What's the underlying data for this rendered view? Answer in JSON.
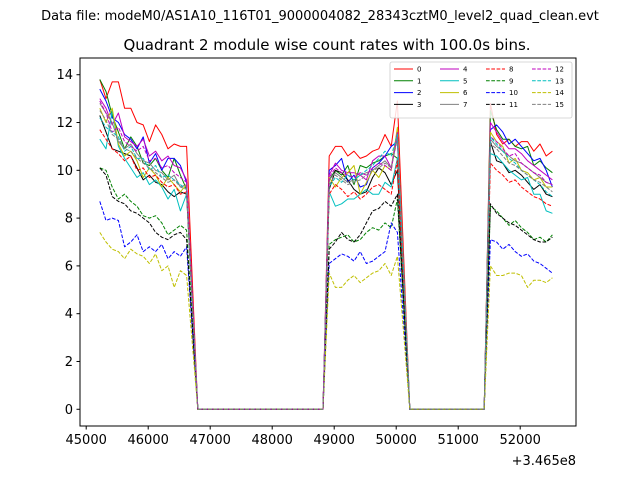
{
  "figure": {
    "suptitle": "Data file: modeM0/AS1A10_116T01_9000004082_28343cztM0_level2_quad_clean.evt",
    "title": "Quadrant 2 module wise count rates with 100.0s bins.",
    "x_offset_label": "+3.465e8"
  },
  "chart_data": {
    "type": "line",
    "title": "Quadrant 2 module wise count rates with 100.0s bins.",
    "xlabel": "",
    "ylabel": "",
    "x_offset": 346500000,
    "xlim": [
      44900,
      52900
    ],
    "ylim": [
      -0.7,
      14.7
    ],
    "xticks": [
      45000,
      46000,
      47000,
      48000,
      49000,
      50000,
      51000,
      52000
    ],
    "xtick_labels": [
      "45000",
      "46000",
      "47000",
      "48000",
      "49000",
      "50000",
      "51000",
      "52000"
    ],
    "yticks": [
      0,
      2,
      4,
      6,
      8,
      10,
      12,
      14
    ],
    "ytick_labels": [
      "0",
      "2",
      "4",
      "6",
      "8",
      "10",
      "12",
      "14"
    ],
    "legend_location": "top-right",
    "legend_columns": 4,
    "segments": [
      {
        "start": 45220,
        "step": 100,
        "n": 15
      },
      {
        "start": 48920,
        "step": 100,
        "n": 12
      },
      {
        "start": 51520,
        "step": 100,
        "n": 11
      }
    ],
    "zero_points_x": [
      46800,
      48820,
      50220,
      51420
    ],
    "series": [
      {
        "name": "0",
        "color": "#ff0000",
        "dash": "solid",
        "values": [
          13.8,
          13.0,
          13.7,
          13.7,
          12.6,
          12.6,
          12.0,
          11.9,
          11.2,
          11.9,
          11.5,
          10.9,
          11.1,
          11.0,
          11.0,
          10.6,
          11.0,
          11.0,
          10.6,
          10.8,
          10.5,
          10.6,
          10.8,
          10.9,
          11.5,
          11.0,
          12.9,
          12.8,
          11.5,
          11.1,
          11.3,
          11.0,
          11.2,
          11.2,
          10.8,
          11.1,
          10.6,
          10.8
        ]
      },
      {
        "name": "1",
        "color": "#008000",
        "dash": "solid",
        "values": [
          13.8,
          13.3,
          12.3,
          11.6,
          10.9,
          11.4,
          11.0,
          10.3,
          10.2,
          10.5,
          10.0,
          9.7,
          10.5,
          9.8,
          9.2,
          9.6,
          10.0,
          9.8,
          10.2,
          9.4,
          10.2,
          10.1,
          10.3,
          10.4,
          10.6,
          10.7,
          10.5,
          12.5,
          11.7,
          11.3,
          11.3,
          11.0,
          10.9,
          11.0,
          10.2,
          10.4,
          10.1,
          9.9
        ]
      },
      {
        "name": "2",
        "color": "#0000ff",
        "dash": "solid",
        "values": [
          13.4,
          12.9,
          12.2,
          12.0,
          11.5,
          11.3,
          10.9,
          11.4,
          10.3,
          10.7,
          10.0,
          10.5,
          10.5,
          10.2,
          9.5,
          10.0,
          10.2,
          10.5,
          9.5,
          9.8,
          9.3,
          9.4,
          10.1,
          10.3,
          10.6,
          11.0,
          11.2,
          11.7,
          11.9,
          11.6,
          11.1,
          11.3,
          11.0,
          10.7,
          10.4,
          10.5,
          10.0,
          9.3
        ]
      },
      {
        "name": "3",
        "color": "#000000",
        "dash": "solid",
        "values": [
          12.3,
          11.6,
          10.9,
          10.8,
          10.7,
          10.6,
          10.1,
          9.6,
          9.8,
          9.5,
          9.4,
          9.1,
          8.9,
          9.1,
          9.0,
          9.2,
          10.0,
          9.9,
          9.6,
          9.2,
          9.0,
          9.1,
          9.7,
          10.1,
          9.9,
          9.4,
          10.0,
          11.2,
          10.4,
          10.3,
          9.9,
          10.0,
          9.8,
          9.5,
          9.2,
          9.4,
          9.0,
          8.9
        ]
      },
      {
        "name": "4",
        "color": "#bf00bf",
        "dash": "solid",
        "values": [
          13.0,
          12.6,
          11.9,
          12.4,
          11.4,
          11.2,
          11.0,
          11.3,
          10.6,
          10.8,
          10.4,
          10.6,
          10.2,
          10.1,
          9.6,
          9.8,
          10.3,
          10.0,
          9.9,
          9.9,
          9.8,
          9.6,
          10.4,
          10.6,
          10.6,
          10.1,
          11.7,
          12.0,
          11.6,
          11.2,
          10.9,
          10.9,
          10.7,
          10.4,
          10.2,
          10.0,
          9.8,
          9.6
        ]
      },
      {
        "name": "5",
        "color": "#00bfbf",
        "dash": "solid",
        "values": [
          11.3,
          10.9,
          12.5,
          11.0,
          10.5,
          10.1,
          9.7,
          9.9,
          9.4,
          9.6,
          9.3,
          8.8,
          9.2,
          8.3,
          9.0,
          9.1,
          8.5,
          8.6,
          8.8,
          8.8,
          9.0,
          9.2,
          9.0,
          9.0,
          9.5,
          9.3,
          10.5,
          10.7,
          10.6,
          10.3,
          10.0,
          9.8,
          9.6,
          9.7,
          9.0,
          9.0,
          8.3,
          8.2
        ]
      },
      {
        "name": "6",
        "color": "#bfbf00",
        "dash": "solid",
        "values": [
          12.6,
          12.0,
          12.6,
          11.1,
          10.6,
          10.8,
          10.4,
          9.7,
          10.1,
          9.8,
          9.3,
          9.7,
          9.4,
          9.1,
          9.4,
          9.7,
          9.3,
          9.7,
          9.9,
          10.2,
          9.0,
          9.5,
          10.0,
          9.7,
          10.2,
          10.0,
          11.8,
          11.6,
          11.2,
          11.0,
          10.3,
          10.5,
          10.0,
          9.9,
          9.6,
          9.7,
          9.3,
          9.3
        ]
      },
      {
        "name": "7",
        "color": "#808080",
        "dash": "solid",
        "values": [
          12.8,
          12.4,
          12.0,
          11.2,
          10.9,
          11.1,
          10.7,
          10.4,
          10.3,
          10.0,
          9.9,
          9.6,
          9.8,
          9.3,
          9.4,
          9.6,
          9.9,
          9.7,
          9.5,
          9.6,
          9.8,
          9.9,
          10.0,
          10.2,
          10.4,
          10.1,
          11.4,
          11.3,
          11.0,
          10.8,
          10.6,
          10.4,
          10.3,
          10.1,
          9.9,
          9.7,
          9.5,
          9.4
        ]
      },
      {
        "name": "8",
        "color": "#ff0000",
        "dash": "dashed",
        "values": [
          11.7,
          11.3,
          10.9,
          10.7,
          10.4,
          10.6,
          10.0,
          10.1,
          9.7,
          9.8,
          9.5,
          9.3,
          9.4,
          9.0,
          9.1,
          9.0,
          9.4,
          9.2,
          8.9,
          9.1,
          8.8,
          9.0,
          9.3,
          9.4,
          9.2,
          9.0,
          10.4,
          10.3,
          10.0,
          9.8,
          9.5,
          9.6,
          9.3,
          9.1,
          8.9,
          8.8,
          8.6,
          8.5
        ]
      },
      {
        "name": "9",
        "color": "#008000",
        "dash": "dashed",
        "values": [
          10.1,
          10.0,
          9.3,
          8.8,
          9.0,
          8.7,
          8.5,
          8.1,
          8.0,
          8.1,
          7.8,
          7.3,
          7.5,
          7.7,
          7.5,
          6.9,
          7.1,
          7.2,
          7.3,
          7.0,
          7.1,
          7.4,
          7.6,
          7.5,
          7.8,
          7.6,
          8.8,
          8.5,
          8.3,
          8.0,
          7.7,
          7.9,
          7.6,
          7.4,
          7.1,
          7.2,
          7.0,
          7.3
        ]
      },
      {
        "name": "10",
        "color": "#0000ff",
        "dash": "dashed",
        "values": [
          8.7,
          7.9,
          8.0,
          7.9,
          6.8,
          7.0,
          7.3,
          6.6,
          6.8,
          6.6,
          6.9,
          6.3,
          6.6,
          6.4,
          6.8,
          6.1,
          6.3,
          6.5,
          6.4,
          6.2,
          6.6,
          6.1,
          6.2,
          6.4,
          6.6,
          7.8,
          7.4,
          7.1,
          7.0,
          6.7,
          6.9,
          6.6,
          6.4,
          6.5,
          6.2,
          6.1,
          5.9,
          5.7
        ]
      },
      {
        "name": "11",
        "color": "#000000",
        "dash": "dashed",
        "values": [
          10.1,
          9.8,
          8.9,
          8.7,
          8.6,
          8.3,
          8.2,
          8.0,
          7.8,
          7.4,
          7.2,
          7.1,
          7.3,
          7.4,
          7.1,
          6.7,
          7.0,
          7.4,
          7.1,
          7.0,
          7.3,
          7.8,
          8.3,
          8.4,
          8.7,
          8.5,
          9.0,
          8.6,
          8.2,
          8.0,
          7.8,
          7.7,
          7.5,
          7.3,
          7.1,
          7.0,
          7.0,
          7.2
        ]
      },
      {
        "name": "12",
        "color": "#bf00bf",
        "dash": "dashed",
        "values": [
          12.9,
          12.4,
          11.6,
          11.8,
          11.2,
          11.0,
          10.8,
          11.0,
          10.4,
          10.5,
          10.1,
          10.2,
          9.9,
          9.7,
          9.5,
          9.7,
          10.1,
          9.9,
          9.8,
          9.7,
          9.9,
          9.8,
          10.1,
          10.3,
          10.2,
          10.0,
          11.6,
          11.4,
          11.2,
          10.9,
          10.6,
          10.7,
          10.3,
          10.1,
          9.9,
          9.8,
          9.5,
          9.4
        ]
      },
      {
        "name": "13",
        "color": "#00bfbf",
        "dash": "dashed",
        "values": [
          12.2,
          11.8,
          11.6,
          11.4,
          10.8,
          11.0,
          10.5,
          10.5,
          10.0,
          10.2,
          9.7,
          9.8,
          9.6,
          9.4,
          9.2,
          9.3,
          9.7,
          9.5,
          9.8,
          9.6,
          9.8,
          10.0,
          10.2,
          10.5,
          10.8,
          10.6,
          11.5,
          11.4,
          11.1,
          10.8,
          10.5,
          10.3,
          10.0,
          9.8,
          9.6,
          9.4,
          9.1,
          8.9
        ]
      },
      {
        "name": "14",
        "color": "#bfbf00",
        "dash": "dashed",
        "values": [
          7.4,
          7.0,
          6.7,
          6.6,
          6.3,
          6.7,
          6.5,
          6.4,
          6.1,
          6.5,
          5.8,
          6.0,
          5.1,
          5.8,
          5.6,
          5.7,
          5.1,
          5.1,
          5.4,
          5.6,
          5.3,
          5.5,
          5.7,
          5.8,
          6.1,
          5.6,
          6.4,
          6.0,
          5.6,
          5.6,
          5.7,
          5.7,
          5.6,
          5.1,
          5.4,
          5.4,
          5.3,
          5.5
        ]
      },
      {
        "name": "15",
        "color": "#808080",
        "dash": "dashed",
        "values": [
          12.5,
          12.1,
          11.5,
          11.3,
          10.9,
          10.8,
          10.5,
          10.3,
          10.1,
          9.9,
          9.7,
          9.5,
          9.6,
          9.3,
          9.2,
          9.4,
          9.8,
          9.6,
          9.4,
          9.5,
          9.6,
          9.8,
          10.0,
          10.1,
          10.3,
          10.1,
          11.3,
          11.1,
          10.9,
          10.6,
          10.3,
          10.2,
          10.0,
          9.8,
          9.6,
          9.5,
          9.3,
          9.1
        ]
      }
    ]
  }
}
